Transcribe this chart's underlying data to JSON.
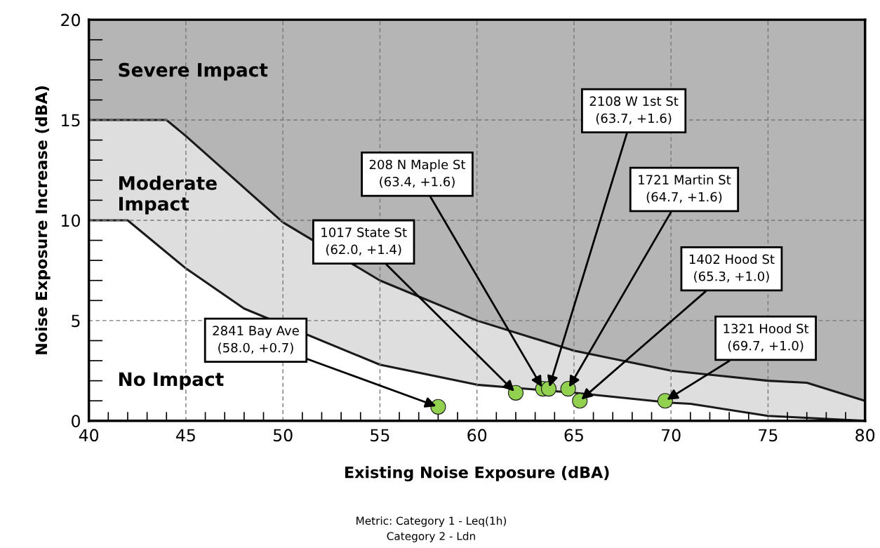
{
  "chart_data": {
    "type": "area",
    "xlabel": "Existing Noise Exposure (dBA)",
    "ylabel": "Noise Exposure Increase (dBA)",
    "xlim": [
      40,
      80
    ],
    "xticks": [
      40,
      45,
      50,
      55,
      60,
      65,
      70,
      75,
      80
    ],
    "ylim": [
      0,
      20
    ],
    "yticks": [
      0,
      5,
      10,
      15,
      20
    ],
    "grid": true,
    "bands": [
      {
        "axis": "y",
        "from": 0,
        "to": 20,
        "color": "#b5b5b5"
      }
    ],
    "series": [
      {
        "color": "#dedede",
        "x": [
          40,
          44,
          45,
          50,
          55,
          60,
          65,
          70,
          75,
          77,
          80
        ],
        "values": [
          15,
          15,
          14.2,
          9.9,
          7.0,
          5.0,
          3.5,
          2.5,
          2.0,
          1.9,
          1.0
        ]
      },
      {
        "color": "#ffffff",
        "x": [
          40,
          42,
          45,
          48,
          55,
          60,
          65,
          70,
          71,
          75,
          80
        ],
        "values": [
          10,
          10,
          7.6,
          5.6,
          2.8,
          1.8,
          1.4,
          0.9,
          0.85,
          0.25,
          0
        ]
      },
      {
        "type": "scatter",
        "color": "#92d050",
        "marker": "circle",
        "x": [
          58.0,
          62.0,
          63.4,
          63.7,
          64.7,
          65.3,
          69.7
        ],
        "values": [
          0.7,
          1.4,
          1.6,
          1.6,
          1.6,
          1.0,
          1.0
        ]
      }
    ],
    "annotations": [
      "Severe Impact",
      "Moderate\nImpact",
      "No Impact",
      "Metric: Category 1 - Leq(1h)",
      "Category 2 - Ldn",
      {
        "text": "2841 Bay Ave\n(58.0, +0.7)",
        "x": 58.0,
        "y": 0.7
      },
      {
        "text": "1017 State St\n(62.0, +1.4)",
        "x": 62.0,
        "y": 1.4
      },
      {
        "text": "208 N Maple St\n(63.4, +1.6)",
        "x": 63.4,
        "y": 1.6
      },
      {
        "text": "2108 W 1st St\n(63.7, +1.6)",
        "x": 63.7,
        "y": 1.6
      },
      {
        "text": "1721 Martin St\n(64.7, +1.6)",
        "x": 64.7,
        "y": 1.6
      },
      {
        "text": "1402 Hood St\n(65.3, +1.0)",
        "x": 65.3,
        "y": 1.0
      },
      {
        "text": "1321 Hood St\n(69.7, +1.0)",
        "x": 69.7,
        "y": 1.0
      }
    ]
  }
}
